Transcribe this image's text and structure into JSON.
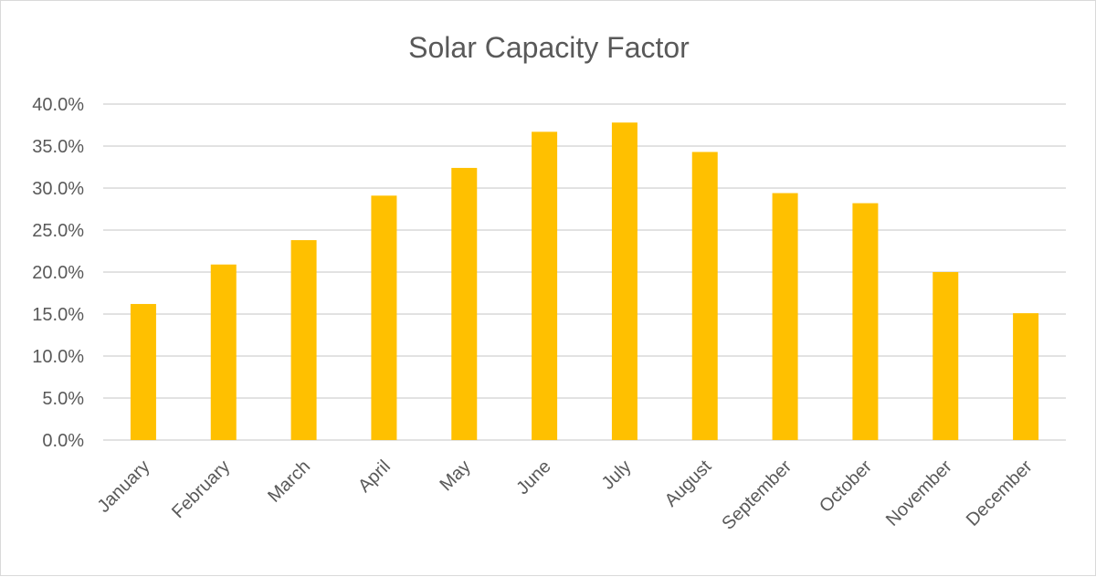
{
  "chart_data": {
    "type": "bar",
    "title": "Solar Capacity Factor",
    "xlabel": "",
    "ylabel": "",
    "categories": [
      "January",
      "February",
      "March",
      "April",
      "May",
      "June",
      "July",
      "August",
      "September",
      "October",
      "November",
      "December"
    ],
    "series": [
      {
        "name": "Capacity Factor",
        "values": [
          0.162,
          0.209,
          0.238,
          0.291,
          0.324,
          0.367,
          0.378,
          0.343,
          0.294,
          0.282,
          0.2,
          0.151
        ]
      }
    ],
    "ylim": [
      0,
      0.4
    ],
    "yticks": [
      0,
      0.05,
      0.1,
      0.15,
      0.2,
      0.25,
      0.3,
      0.35,
      0.4
    ],
    "ytick_labels": [
      "0.0%",
      "5.0%",
      "10.0%",
      "15.0%",
      "20.0%",
      "25.0%",
      "30.0%",
      "35.0%",
      "40.0%"
    ],
    "grid": true,
    "legend": "none",
    "colors": {
      "bar": "#FFC000",
      "grid": "#D9D9D9",
      "text": "#595959"
    }
  }
}
